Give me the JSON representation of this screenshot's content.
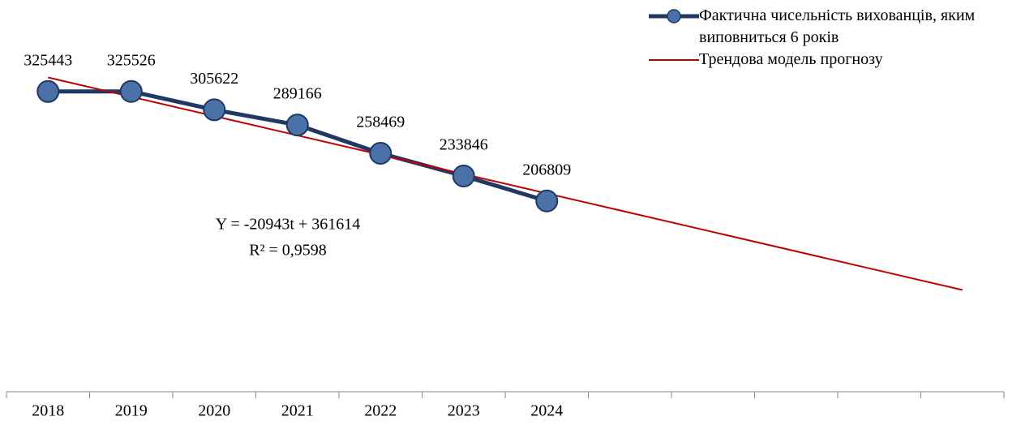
{
  "chart_data": {
    "type": "line",
    "categories": [
      "2018",
      "2019",
      "2020",
      "2021",
      "2022",
      "2023",
      "2024",
      null,
      null,
      null,
      null,
      null
    ],
    "series": [
      {
        "name": "Фактична чисельність вихованців, яким виповниться 6 років",
        "color": "#1f3864",
        "marker_color": "#4a72a8",
        "values": [
          325443,
          325526,
          305622,
          289166,
          258469,
          233846,
          206809,
          null,
          null,
          null,
          null,
          null
        ]
      },
      {
        "name": "Трендова модель прогнозу",
        "color": "#c00000",
        "values": [
          340671,
          319728,
          298785,
          277842,
          256899,
          235956,
          215013,
          194070,
          173127,
          152184,
          131241,
          110298
        ]
      }
    ],
    "annotations": [
      "Y = -20943t + 361614",
      "R² = 0,9598"
    ],
    "ylim": [
      0,
      400000
    ],
    "legend": "top-right"
  }
}
